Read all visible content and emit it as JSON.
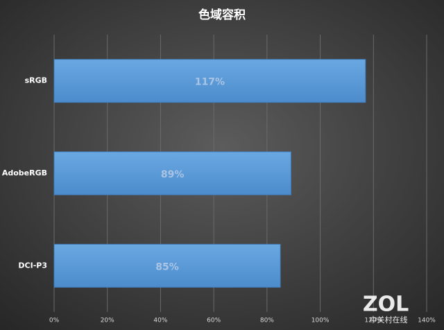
{
  "chart_data": {
    "type": "barh",
    "title": "色域容积",
    "categories": [
      "sRGB",
      "AdobeRGB",
      "DCI-P3"
    ],
    "values": [
      117,
      89,
      85
    ],
    "value_labels": [
      "117%",
      "89%",
      "85%"
    ],
    "color": "#5b9bd5",
    "xlim": [
      0,
      140
    ],
    "xticks": [
      {
        "value": 0,
        "label": "0%"
      },
      {
        "value": 20,
        "label": "20%"
      },
      {
        "value": 40,
        "label": "40%"
      },
      {
        "value": 60,
        "label": "60%"
      },
      {
        "value": 80,
        "label": "80%"
      },
      {
        "value": 100,
        "label": "100%"
      },
      {
        "value": 120,
        "label": "120%"
      },
      {
        "value": 140,
        "label": "140%"
      }
    ],
    "grid": true
  },
  "watermark": {
    "logo": "ZOL",
    "text": "中关村在线"
  }
}
